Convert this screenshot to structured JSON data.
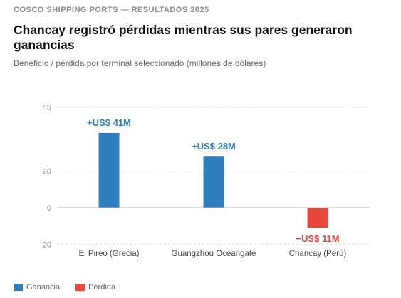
{
  "kicker": "COSCO SHIPPING PORTS — RESULTADOS 2025",
  "title": "Chancay registró pérdidas mientras sus pares generaron ganancias",
  "subtitle": "Beneficio / pérdida por terminal seleccionado (millones de dólares)",
  "legend": [
    {
      "label": "Ganancia",
      "color": "#2e7ebf"
    },
    {
      "label": "Pérdida",
      "color": "#e8473c"
    }
  ],
  "chart_data": {
    "type": "bar",
    "categories": [
      "El Pireo (Grecia)",
      "Guangzhou Oceangate",
      "Chancay (Perú)"
    ],
    "values": [
      41,
      28,
      -11
    ],
    "data_labels": [
      "+US$ 41M",
      "+US$ 28M",
      "−US$ 11M"
    ],
    "colors": {
      "positive": "#2e7ebf",
      "negative": "#e8473c"
    },
    "yticks": [
      55,
      20,
      0,
      -20
    ],
    "ylim": [
      -20,
      55
    ],
    "grid": true,
    "legend_position": "bottom-left"
  }
}
